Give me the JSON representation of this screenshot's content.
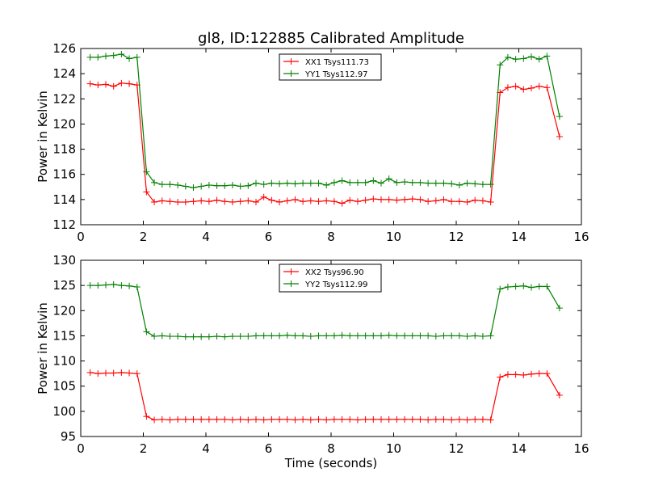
{
  "figure_title": "gl8, ID:122885 Calibrated Amplitude",
  "colors": {
    "xx": "#ff0000",
    "yy": "#008000"
  },
  "chart_data": [
    {
      "type": "line",
      "title": "gl8, ID:122885 Calibrated Amplitude",
      "xlabel": "",
      "ylabel": "Power in Kelvin",
      "xlim": [
        0,
        16
      ],
      "ylim": [
        112,
        126
      ],
      "xticks": [
        0,
        2,
        4,
        6,
        8,
        10,
        12,
        14,
        16
      ],
      "yticks": [
        112,
        114,
        116,
        118,
        120,
        122,
        124,
        126
      ],
      "grid": false,
      "legend_position": "top-center",
      "x": [
        0.3,
        0.55,
        0.8,
        1.05,
        1.3,
        1.55,
        1.8,
        2.1,
        2.35,
        2.6,
        2.85,
        3.1,
        3.35,
        3.6,
        3.85,
        4.1,
        4.35,
        4.6,
        4.85,
        5.1,
        5.35,
        5.6,
        5.85,
        6.1,
        6.35,
        6.6,
        6.85,
        7.1,
        7.35,
        7.6,
        7.85,
        8.1,
        8.35,
        8.6,
        8.85,
        9.1,
        9.35,
        9.6,
        9.85,
        10.1,
        10.35,
        10.6,
        10.85,
        11.1,
        11.35,
        11.6,
        11.85,
        12.1,
        12.35,
        12.6,
        12.85,
        13.1,
        13.4,
        13.65,
        13.9,
        14.15,
        14.4,
        14.65,
        14.9,
        15.3
      ],
      "series": [
        {
          "name": "XX1 Tsys111.73",
          "color": "#ff0000",
          "values": [
            123.2,
            123.1,
            123.15,
            123.0,
            123.25,
            123.2,
            123.1,
            114.6,
            113.8,
            113.9,
            113.85,
            113.8,
            113.8,
            113.85,
            113.9,
            113.85,
            113.95,
            113.85,
            113.8,
            113.85,
            113.9,
            113.8,
            114.2,
            113.95,
            113.8,
            113.9,
            114.0,
            113.85,
            113.9,
            113.85,
            113.9,
            113.85,
            113.7,
            113.95,
            113.85,
            113.95,
            114.05,
            114.0,
            114.0,
            113.95,
            114.0,
            114.05,
            114.0,
            113.85,
            113.9,
            114.0,
            113.85,
            113.85,
            113.8,
            113.95,
            113.9,
            113.8,
            122.5,
            122.9,
            123.0,
            122.75,
            122.85,
            123.0,
            122.9,
            119.0
          ]
        },
        {
          "name": "YY1 Tsys112.97",
          "color": "#008000",
          "values": [
            125.3,
            125.3,
            125.4,
            125.45,
            125.55,
            125.2,
            125.3,
            116.2,
            115.35,
            115.2,
            115.2,
            115.15,
            115.05,
            114.95,
            115.05,
            115.15,
            115.1,
            115.1,
            115.15,
            115.05,
            115.1,
            115.3,
            115.2,
            115.3,
            115.25,
            115.3,
            115.25,
            115.3,
            115.3,
            115.3,
            115.15,
            115.35,
            115.5,
            115.35,
            115.35,
            115.35,
            115.5,
            115.3,
            115.65,
            115.35,
            115.4,
            115.35,
            115.35,
            115.3,
            115.3,
            115.3,
            115.25,
            115.15,
            115.3,
            115.25,
            115.2,
            115.2,
            124.7,
            125.3,
            125.15,
            125.2,
            125.35,
            125.15,
            125.4,
            120.6
          ]
        }
      ]
    },
    {
      "type": "line",
      "title": "",
      "xlabel": "Time (seconds)",
      "ylabel": "Power in Kelvin",
      "xlim": [
        0,
        16
      ],
      "ylim": [
        95,
        130
      ],
      "xticks": [
        0,
        2,
        4,
        6,
        8,
        10,
        12,
        14,
        16
      ],
      "yticks": [
        95,
        100,
        105,
        110,
        115,
        120,
        125,
        130
      ],
      "grid": false,
      "legend_position": "top-center",
      "x": [
        0.3,
        0.55,
        0.8,
        1.05,
        1.3,
        1.55,
        1.8,
        2.1,
        2.35,
        2.6,
        2.85,
        3.1,
        3.35,
        3.6,
        3.85,
        4.1,
        4.35,
        4.6,
        4.85,
        5.1,
        5.35,
        5.6,
        5.85,
        6.1,
        6.35,
        6.6,
        6.85,
        7.1,
        7.35,
        7.6,
        7.85,
        8.1,
        8.35,
        8.6,
        8.85,
        9.1,
        9.35,
        9.6,
        9.85,
        10.1,
        10.35,
        10.6,
        10.85,
        11.1,
        11.35,
        11.6,
        11.85,
        12.1,
        12.35,
        12.6,
        12.85,
        13.1,
        13.4,
        13.65,
        13.9,
        14.15,
        14.4,
        14.65,
        14.9,
        15.3
      ],
      "series": [
        {
          "name": "XX2 Tsys96.90",
          "color": "#ff0000",
          "values": [
            107.7,
            107.5,
            107.6,
            107.6,
            107.7,
            107.6,
            107.5,
            99.0,
            98.3,
            98.4,
            98.3,
            98.4,
            98.4,
            98.4,
            98.4,
            98.4,
            98.4,
            98.4,
            98.3,
            98.4,
            98.3,
            98.4,
            98.3,
            98.4,
            98.4,
            98.4,
            98.3,
            98.4,
            98.3,
            98.4,
            98.3,
            98.4,
            98.4,
            98.4,
            98.3,
            98.4,
            98.4,
            98.4,
            98.4,
            98.4,
            98.4,
            98.4,
            98.4,
            98.3,
            98.4,
            98.4,
            98.3,
            98.4,
            98.3,
            98.4,
            98.4,
            98.3,
            106.8,
            107.3,
            107.3,
            107.2,
            107.4,
            107.5,
            107.5,
            103.2
          ]
        },
        {
          "name": "YY2 Tsys112.99",
          "color": "#008000",
          "values": [
            125.0,
            125.0,
            125.1,
            125.2,
            125.0,
            124.9,
            124.7,
            115.8,
            114.9,
            115.0,
            114.9,
            114.9,
            114.8,
            114.8,
            114.8,
            114.8,
            114.9,
            114.8,
            114.9,
            114.9,
            114.9,
            115.0,
            115.0,
            115.0,
            115.0,
            115.1,
            115.0,
            115.0,
            114.9,
            115.0,
            115.0,
            115.0,
            115.1,
            115.0,
            115.0,
            115.0,
            115.0,
            115.0,
            115.1,
            115.0,
            115.0,
            115.0,
            115.0,
            115.0,
            114.9,
            115.0,
            115.0,
            115.0,
            114.9,
            115.0,
            114.9,
            115.0,
            124.3,
            124.7,
            124.8,
            124.9,
            124.6,
            124.8,
            124.8,
            120.5
          ]
        }
      ]
    }
  ]
}
